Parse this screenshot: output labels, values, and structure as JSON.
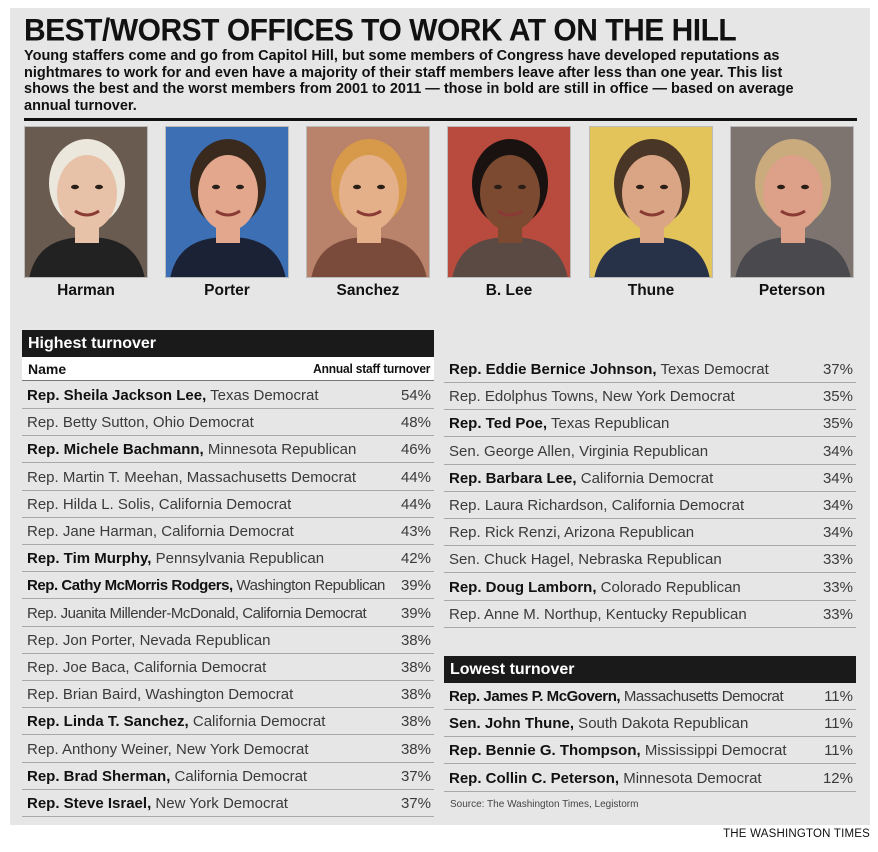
{
  "headline": "BEST/WORST OFFICES TO WORK AT ON THE HILL",
  "deck": "Young staffers come and go from Capitol Hill, but some members of Congress have developed reputations as nightmares to work for and even have a majority of their staff members leave after less than one year. This list shows the best and the worst members from 2001 to 2011 — those in bold are still in office — based on average annual turnover.",
  "photos": [
    {
      "label": "Harman",
      "skin": "#e8c2a8",
      "hair": "#ece7dc",
      "bg": "#6a5b50",
      "clothes": "#222222"
    },
    {
      "label": "Porter",
      "skin": "#e2a78c",
      "hair": "#3a2a1e",
      "bg": "#3d6fb5",
      "clothes": "#1c2235"
    },
    {
      "label": "Sanchez",
      "skin": "#e4b08a",
      "hair": "#d79a4a",
      "bg": "#b9826a",
      "clothes": "#7a4a3a"
    },
    {
      "label": "B. Lee",
      "skin": "#7b4a30",
      "hair": "#1a1210",
      "bg": "#b84a3e",
      "clothes": "#5b4a44"
    },
    {
      "label": "Thune",
      "skin": "#d9a584",
      "hair": "#4a3626",
      "bg": "#e2c45a",
      "clothes": "#273248"
    },
    {
      "label": "Peterson",
      "skin": "#dda088",
      "hair": "#c9ab7e",
      "bg": "#7d7470",
      "clothes": "#4a4a4e"
    }
  ],
  "highest": {
    "heading": "Highest turnover",
    "col_name": "Name",
    "col_value": "Annual staff turnover",
    "rows": [
      {
        "name": "Rep. Sheila Jackson Lee,",
        "desc": " Texas Democrat",
        "pct": "54%",
        "bold": true
      },
      {
        "name": "Rep. Betty Sutton,",
        "desc": " Ohio Democrat",
        "pct": "48%",
        "bold": false
      },
      {
        "name": "Rep. Michele Bachmann,",
        "desc": " Minnesota Republican",
        "pct": "46%",
        "bold": true
      },
      {
        "name": "Rep. Martin T. Meehan,",
        "desc": " Massachusetts Democrat",
        "pct": "44%",
        "bold": false
      },
      {
        "name": "Rep. Hilda L. Solis,",
        "desc": " California Democrat",
        "pct": "44%",
        "bold": false
      },
      {
        "name": "Rep. Jane Harman,",
        "desc": " California Democrat",
        "pct": "43%",
        "bold": false
      },
      {
        "name": "Rep. Tim Murphy,",
        "desc": " Pennsylvania Republican",
        "pct": "42%",
        "bold": true
      },
      {
        "name": "Rep. Cathy McMorris Rodgers,",
        "desc": " Washington Republican",
        "pct": "39%",
        "bold": true,
        "compact": true
      },
      {
        "name": "Rep. Juanita Millender-McDonald,",
        "desc": " California Democrat",
        "pct": "39%",
        "bold": false,
        "compact": true
      },
      {
        "name": "Rep. Jon Porter,",
        "desc": " Nevada Republican",
        "pct": "38%",
        "bold": false
      },
      {
        "name": "Rep. Joe Baca,",
        "desc": " California Democrat",
        "pct": "38%",
        "bold": false
      },
      {
        "name": "Rep. Brian Baird,",
        "desc": " Washington Democrat",
        "pct": "38%",
        "bold": false
      },
      {
        "name": "Rep. Linda T. Sanchez,",
        "desc": " California Democrat",
        "pct": "38%",
        "bold": true
      },
      {
        "name": "Rep. Anthony Weiner,",
        "desc": " New York Democrat",
        "pct": "38%",
        "bold": false
      },
      {
        "name": "Rep. Brad Sherman,",
        "desc": " California Democrat",
        "pct": "37%",
        "bold": true
      },
      {
        "name": "Rep. Steve Israel,",
        "desc": " New York Democrat",
        "pct": "37%",
        "bold": true
      }
    ],
    "continued": [
      {
        "name": "Rep. Eddie Bernice Johnson,",
        "desc": " Texas Democrat",
        "pct": "37%",
        "bold": true
      },
      {
        "name": "Rep. Edolphus Towns,",
        "desc": " New York Democrat",
        "pct": "35%",
        "bold": false
      },
      {
        "name": "Rep. Ted Poe,",
        "desc": " Texas Republican",
        "pct": "35%",
        "bold": true
      },
      {
        "name": "Sen. George Allen,",
        "desc": " Virginia Republican",
        "pct": "34%",
        "bold": false
      },
      {
        "name": "Rep. Barbara Lee,",
        "desc": " California Democrat",
        "pct": "34%",
        "bold": true
      },
      {
        "name": "Rep. Laura Richardson,",
        "desc": " California Democrat",
        "pct": "34%",
        "bold": false
      },
      {
        "name": "Rep. Rick Renzi,",
        "desc": " Arizona Republican",
        "pct": "34%",
        "bold": false
      },
      {
        "name": "Sen. Chuck Hagel,",
        "desc": " Nebraska Republican",
        "pct": "33%",
        "bold": false
      },
      {
        "name": "Rep. Doug Lamborn,",
        "desc": " Colorado Republican",
        "pct": "33%",
        "bold": true
      },
      {
        "name": "Rep. Anne M. Northup,",
        "desc": " Kentucky Republican",
        "pct": "33%",
        "bold": false
      }
    ]
  },
  "lowest": {
    "heading": "Lowest turnover",
    "rows": [
      {
        "name": "Rep. James P. McGovern,",
        "desc": " Massachusetts Democrat",
        "pct": "11%",
        "bold": true,
        "compact": true
      },
      {
        "name": "Sen. John Thune,",
        "desc": " South Dakota Republican",
        "pct": "11%",
        "bold": true
      },
      {
        "name": "Rep. Bennie G. Thompson,",
        "desc": " Mississippi Democrat",
        "pct": "11%",
        "bold": true
      },
      {
        "name": "Rep. Collin C. Peterson,",
        "desc": " Minnesota Democrat",
        "pct": "12%",
        "bold": true
      }
    ]
  },
  "source": "Source: The Washington Times, Legistorm",
  "credit": "THE WASHINGTON TIMES"
}
